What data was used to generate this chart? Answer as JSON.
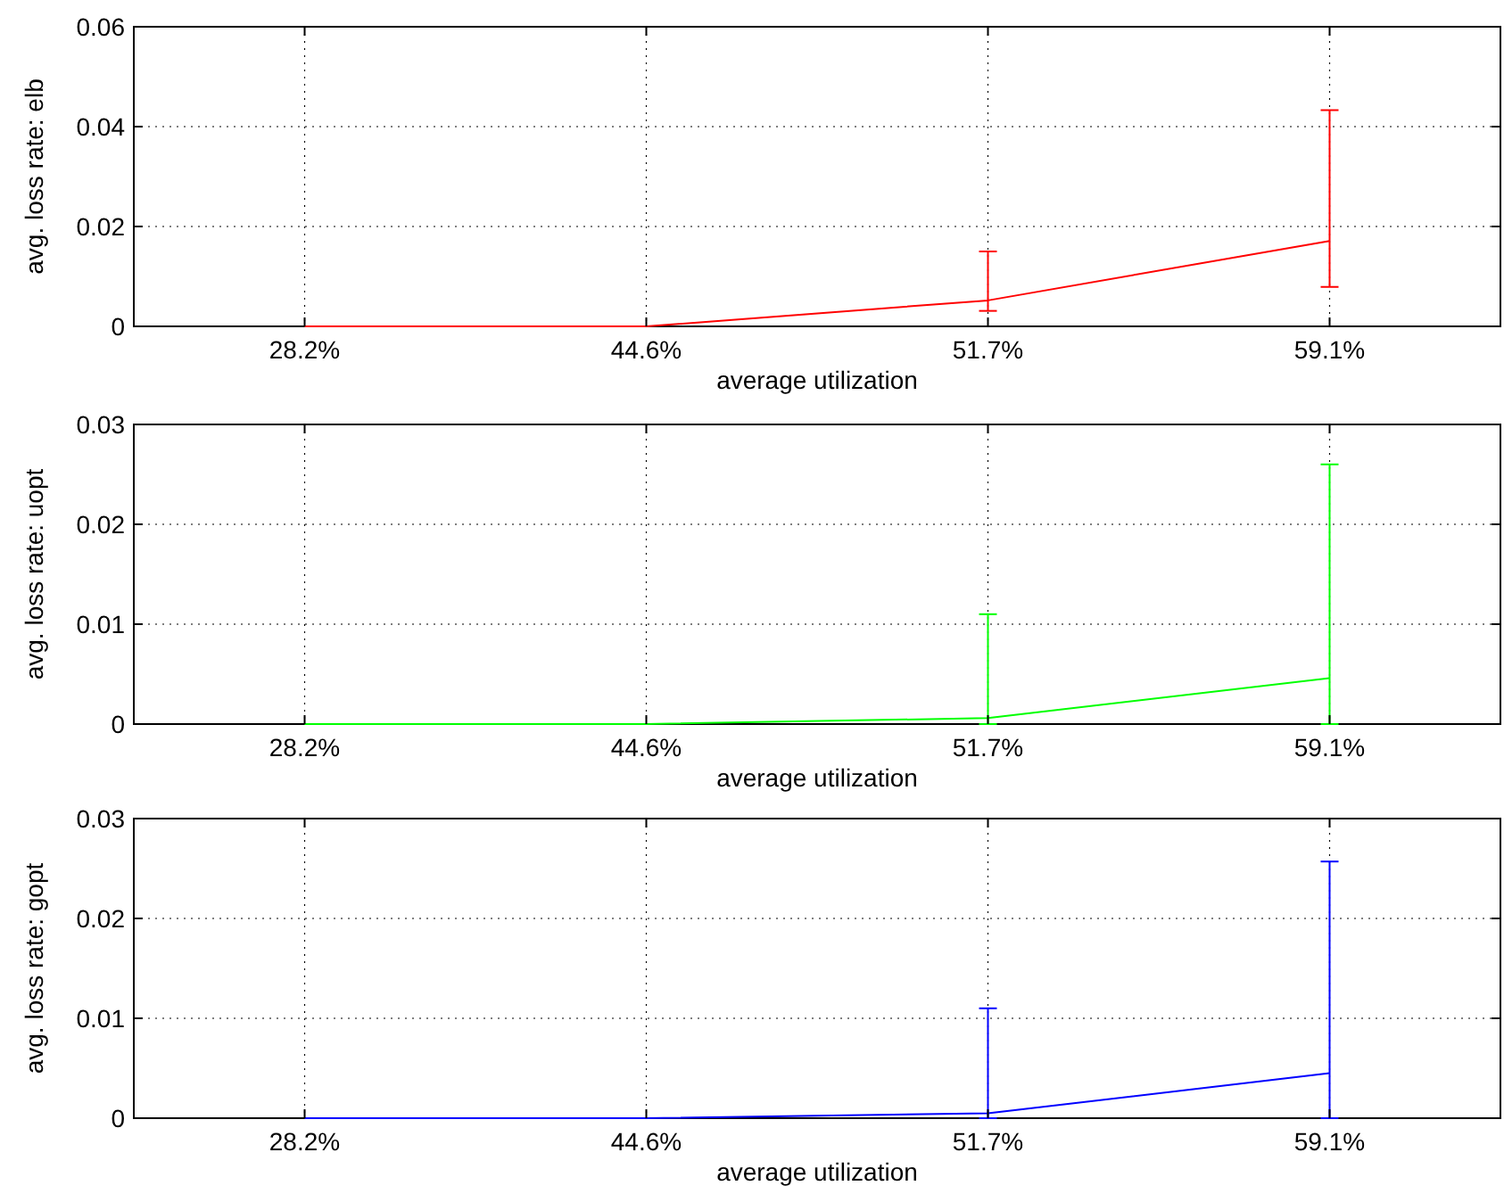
{
  "chart_data": [
    {
      "type": "line",
      "xlabel": "average utilization",
      "ylabel": "avg. loss rate: elb",
      "categories": [
        "28.2%",
        "44.6%",
        "51.7%",
        "59.1%"
      ],
      "series": [
        {
          "color": "#ff0000",
          "values": [
            0,
            0,
            0.0052,
            0.0171
          ],
          "errors": [
            null,
            null,
            [
              0.0031,
              0.015
            ],
            [
              0.0079,
              0.0433
            ]
          ]
        }
      ],
      "ylim": [
        0,
        0.06
      ],
      "yticks": [
        0,
        0.02,
        0.04,
        0.06
      ],
      "grid": true,
      "marker": "none",
      "line_style": "solid"
    },
    {
      "type": "line",
      "xlabel": "average utilization",
      "ylabel": "avg. loss rate: uopt",
      "categories": [
        "28.2%",
        "44.6%",
        "51.7%",
        "59.1%"
      ],
      "series": [
        {
          "color": "#00ff00",
          "values": [
            0,
            0,
            0.0006,
            0.0046
          ],
          "errors": [
            null,
            null,
            [
              0,
              0.011
            ],
            [
              0,
              0.026
            ]
          ]
        }
      ],
      "ylim": [
        0,
        0.03
      ],
      "yticks": [
        0,
        0.01,
        0.02,
        0.03
      ],
      "grid": true,
      "marker": "none",
      "line_style": "solid"
    },
    {
      "type": "line",
      "xlabel": "average utilization",
      "ylabel": "avg. loss rate: gopt",
      "categories": [
        "28.2%",
        "44.6%",
        "51.7%",
        "59.1%"
      ],
      "series": [
        {
          "color": "#0000ff",
          "values": [
            0,
            0,
            0.0005,
            0.0045
          ],
          "errors": [
            null,
            null,
            [
              0,
              0.011
            ],
            [
              0,
              0.0257
            ]
          ]
        }
      ],
      "ylim": [
        0,
        0.03
      ],
      "yticks": [
        0,
        0.01,
        0.02,
        0.03
      ],
      "grid": true,
      "marker": "none",
      "line_style": "solid"
    }
  ]
}
